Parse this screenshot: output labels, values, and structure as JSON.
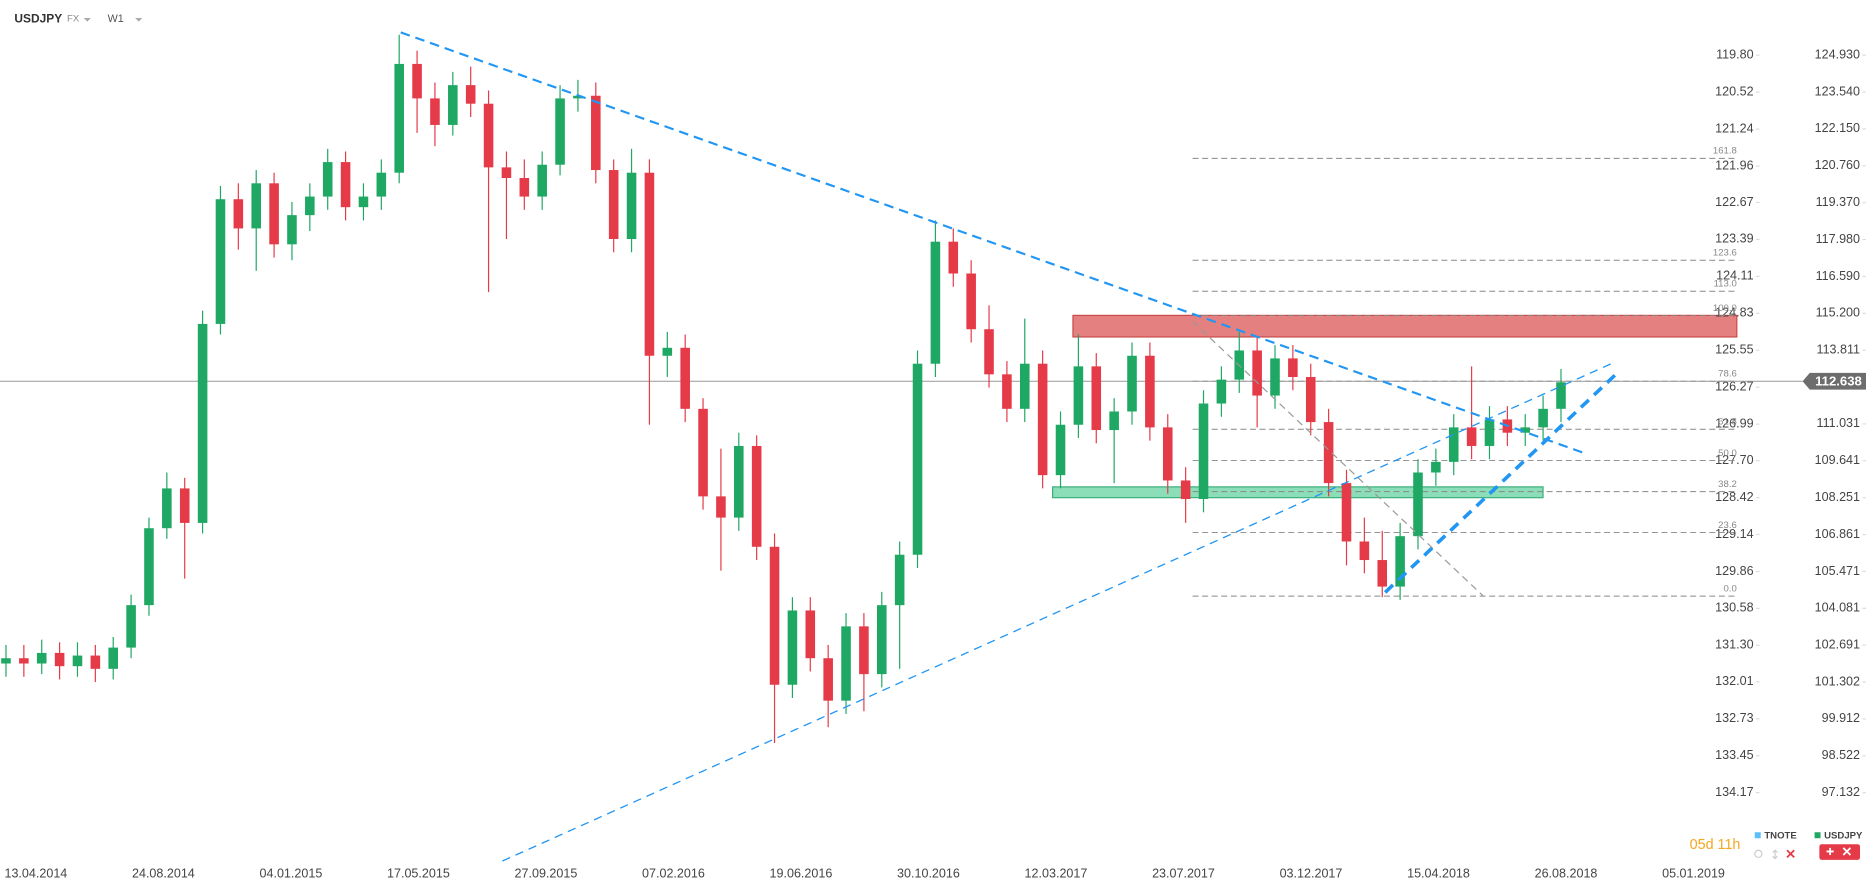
{
  "header": {
    "symbol": "USDJPY",
    "market": "FX",
    "interval": "W1"
  },
  "chart_data": {
    "type": "candlestick",
    "series": [
      {
        "name": "USDJPY",
        "up_color": "#1fa864",
        "down_color": "#e53a47",
        "values": [
          [
            102.0,
            102.7,
            101.5,
            102.2
          ],
          [
            102.2,
            102.7,
            101.5,
            102.0
          ],
          [
            102.0,
            102.9,
            101.6,
            102.4
          ],
          [
            102.4,
            102.8,
            101.4,
            101.9
          ],
          [
            101.9,
            102.8,
            101.5,
            102.3
          ],
          [
            102.3,
            102.7,
            101.3,
            101.8
          ],
          [
            101.8,
            103.0,
            101.4,
            102.6
          ],
          [
            102.6,
            104.6,
            102.2,
            104.2
          ],
          [
            104.2,
            107.5,
            103.8,
            107.1
          ],
          [
            107.1,
            109.2,
            106.7,
            108.6
          ],
          [
            108.6,
            109.0,
            105.2,
            107.3
          ],
          [
            107.3,
            115.3,
            106.9,
            114.8
          ],
          [
            114.8,
            120.0,
            114.4,
            119.5
          ],
          [
            119.5,
            120.1,
            117.6,
            118.4
          ],
          [
            118.4,
            120.6,
            116.8,
            120.1
          ],
          [
            120.1,
            120.5,
            117.3,
            117.8
          ],
          [
            117.8,
            119.4,
            117.2,
            118.9
          ],
          [
            118.9,
            120.1,
            118.3,
            119.6
          ],
          [
            119.6,
            121.4,
            119.1,
            120.9
          ],
          [
            120.9,
            121.3,
            118.7,
            119.2
          ],
          [
            119.2,
            120.1,
            118.7,
            119.6
          ],
          [
            119.6,
            121.0,
            119.1,
            120.5
          ],
          [
            120.5,
            125.7,
            120.1,
            124.6
          ],
          [
            124.6,
            125.1,
            122.0,
            123.3
          ],
          [
            123.3,
            123.9,
            121.5,
            122.3
          ],
          [
            122.3,
            124.3,
            121.9,
            123.8
          ],
          [
            123.8,
            124.5,
            122.6,
            123.1
          ],
          [
            123.1,
            123.6,
            116.0,
            120.7
          ],
          [
            120.7,
            121.3,
            118.0,
            120.3
          ],
          [
            120.3,
            121.0,
            119.1,
            119.6
          ],
          [
            119.6,
            121.3,
            119.1,
            120.8
          ],
          [
            120.8,
            123.8,
            120.4,
            123.3
          ],
          [
            123.3,
            124.0,
            122.8,
            123.4
          ],
          [
            123.4,
            123.9,
            120.1,
            120.6
          ],
          [
            120.6,
            121.0,
            117.5,
            118.0
          ],
          [
            118.0,
            121.4,
            117.5,
            120.5
          ],
          [
            120.5,
            121.0,
            111.0,
            113.6
          ],
          [
            113.6,
            114.5,
            112.8,
            113.9
          ],
          [
            113.9,
            114.4,
            111.1,
            111.6
          ],
          [
            111.6,
            112.0,
            107.8,
            108.3
          ],
          [
            108.3,
            110.1,
            105.5,
            107.5
          ],
          [
            107.5,
            110.7,
            107.0,
            110.2
          ],
          [
            110.2,
            110.6,
            105.9,
            106.4
          ],
          [
            106.4,
            106.9,
            99.0,
            101.2
          ],
          [
            101.2,
            104.5,
            100.7,
            104.0
          ],
          [
            104.0,
            104.5,
            101.7,
            102.2
          ],
          [
            102.2,
            102.7,
            99.6,
            100.6
          ],
          [
            100.6,
            103.9,
            100.1,
            103.4
          ],
          [
            103.4,
            103.9,
            100.2,
            101.6
          ],
          [
            101.6,
            104.7,
            101.1,
            104.2
          ],
          [
            104.2,
            106.6,
            101.8,
            106.1
          ],
          [
            106.1,
            113.8,
            105.6,
            113.3
          ],
          [
            113.3,
            118.7,
            112.8,
            117.9
          ],
          [
            117.9,
            118.4,
            116.2,
            116.7
          ],
          [
            116.7,
            117.2,
            114.1,
            114.6
          ],
          [
            114.6,
            115.5,
            112.4,
            112.9
          ],
          [
            112.9,
            113.4,
            111.1,
            111.6
          ],
          [
            111.6,
            115.0,
            111.1,
            113.3
          ],
          [
            113.3,
            113.8,
            108.6,
            109.1
          ],
          [
            109.1,
            111.5,
            108.6,
            111.0
          ],
          [
            111.0,
            114.4,
            110.5,
            113.2
          ],
          [
            113.2,
            113.7,
            110.3,
            110.8
          ],
          [
            110.8,
            112.0,
            108.8,
            111.5
          ],
          [
            111.5,
            114.1,
            111.0,
            113.6
          ],
          [
            113.6,
            114.1,
            110.4,
            110.9
          ],
          [
            110.9,
            111.4,
            108.4,
            108.9
          ],
          [
            108.9,
            109.4,
            107.3,
            108.2
          ],
          [
            108.2,
            112.3,
            107.7,
            111.8
          ],
          [
            111.8,
            113.2,
            111.3,
            112.7
          ],
          [
            112.7,
            114.5,
            112.2,
            113.8
          ],
          [
            113.8,
            114.3,
            110.9,
            112.1
          ],
          [
            112.1,
            114.0,
            111.6,
            113.5
          ],
          [
            113.5,
            114.0,
            112.3,
            112.8
          ],
          [
            112.8,
            113.3,
            110.6,
            111.1
          ],
          [
            111.1,
            111.6,
            108.3,
            108.8
          ],
          [
            108.8,
            109.3,
            105.7,
            106.6
          ],
          [
            106.6,
            107.5,
            105.4,
            105.9
          ],
          [
            105.9,
            107.0,
            104.5,
            104.9
          ],
          [
            104.9,
            107.3,
            104.4,
            106.8
          ],
          [
            106.8,
            109.7,
            106.3,
            109.2
          ],
          [
            109.2,
            110.1,
            108.7,
            109.6
          ],
          [
            109.6,
            111.4,
            109.1,
            110.9
          ],
          [
            110.9,
            113.2,
            109.7,
            110.2
          ],
          [
            110.2,
            111.7,
            109.7,
            111.2
          ],
          [
            111.2,
            111.7,
            110.2,
            110.7
          ],
          [
            110.7,
            111.4,
            110.2,
            110.9
          ],
          [
            110.9,
            112.1,
            110.4,
            111.6
          ],
          [
            111.6,
            113.1,
            111.1,
            112.6
          ]
        ]
      }
    ],
    "ylim": [
      94.556,
      127.009
    ],
    "yticks": [
      {
        "value": 124.93,
        "label": "124.930"
      },
      {
        "value": 123.54,
        "label": "123.540"
      },
      {
        "value": 122.15,
        "label": "122.150"
      },
      {
        "value": 120.76,
        "label": "120.760"
      },
      {
        "value": 119.37,
        "label": "119.370"
      },
      {
        "value": 117.98,
        "label": "117.980"
      },
      {
        "value": 116.59,
        "label": "116.590"
      },
      {
        "value": 115.2,
        "label": "115.200"
      },
      113.811,
      111.031,
      109.641,
      108.251,
      106.861,
      105.471,
      104.081,
      102.691,
      101.302,
      99.912,
      98.522,
      97.132
    ],
    "y2lim": [
      135.502,
      118.725
    ],
    "y2ticks": [
      {
        "value": 119.8,
        "label": "119.80"
      },
      120.52,
      121.24,
      121.96,
      122.67,
      123.39,
      124.11,
      124.83,
      125.55,
      126.27,
      126.99,
      {
        "value": 127.7,
        "label": "127.70"
      },
      128.42,
      129.14,
      129.86,
      130.58,
      {
        "value": 131.3,
        "label": "131.30"
      },
      132.01,
      132.73,
      133.45,
      134.17
    ],
    "xticks": [
      "13.04.2014",
      "24.08.2014",
      "04.01.2015",
      "17.05.2015",
      "27.09.2015",
      "07.02.2016",
      "19.06.2016",
      "30.10.2016",
      "12.03.2017",
      "23.07.2017",
      "03.12.2017",
      "15.04.2018",
      "26.08.2018",
      "05.01.2019"
    ],
    "last_price": 112.638,
    "fibonacci": [
      {
        "label": "161.8",
        "value": 121.04
      },
      {
        "label": "123.6",
        "value": 117.2
      },
      {
        "label": "113.0",
        "value": 116.03
      },
      {
        "label": "100.0",
        "value": 115.12
      },
      {
        "label": "78.6",
        "value": 112.64
      },
      {
        "label": "61.8",
        "value": 110.83
      },
      {
        "label": "50.0",
        "value": 109.65
      },
      {
        "label": "38.2",
        "value": 108.48
      },
      {
        "label": "23.6",
        "value": 106.94
      },
      {
        "label": "0.0",
        "value": 104.54
      }
    ],
    "countdown": "05d 11h",
    "legend": [
      {
        "name": "TNOTE",
        "color": "#5bc0f8"
      },
      {
        "name": "USDJPY",
        "color": "#1fa864"
      }
    ]
  }
}
